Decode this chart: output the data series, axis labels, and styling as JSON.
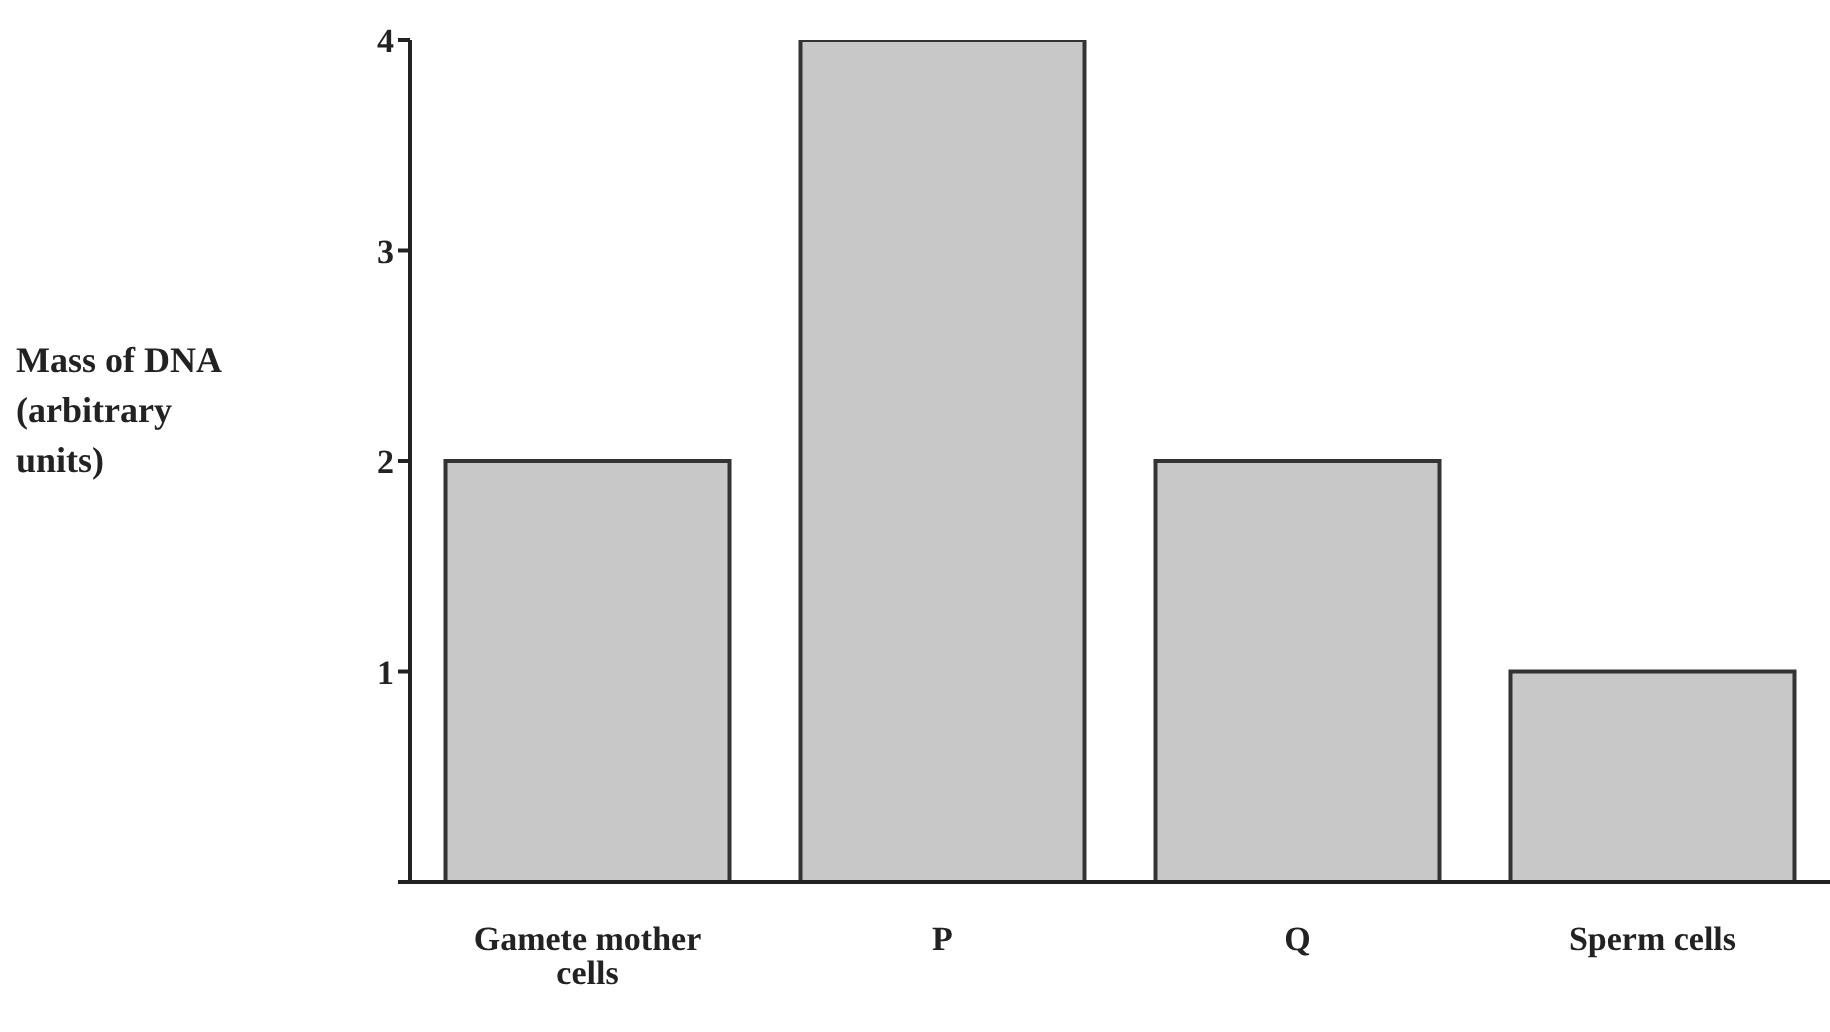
{
  "chart_data": {
    "type": "bar",
    "ylabel": "Mass of DNA (arbitrary units)",
    "categories": [
      "Gamete mother cells",
      "P",
      "Q",
      "Sperm cells"
    ],
    "values": [
      2,
      4,
      2,
      1
    ],
    "color": "#c8c8c8",
    "ylim": [
      0,
      4
    ],
    "yticks": [
      {
        "value": 0,
        "label": null
      },
      1,
      2,
      3,
      4
    ],
    "grid": false
  }
}
